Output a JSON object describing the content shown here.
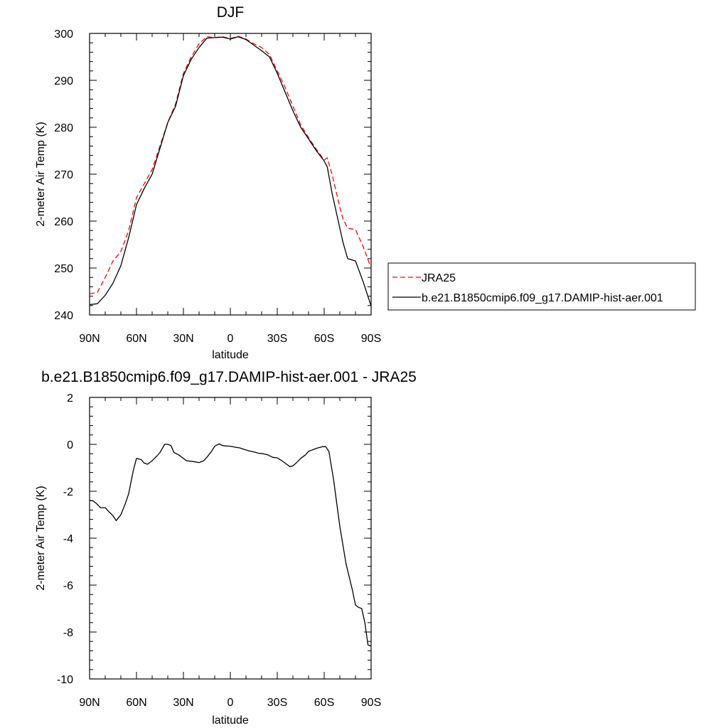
{
  "chart_data": [
    {
      "type": "line",
      "title": "DJF",
      "xlabel": "latitude",
      "ylabel": "2-meter Air Temp (K)",
      "xlim": [
        90,
        -90
      ],
      "ylim": [
        240,
        300
      ],
      "x_tick_values": [
        90,
        60,
        30,
        0,
        -30,
        -60,
        -90
      ],
      "x_tick_labels": [
        "90N",
        "60N",
        "30N",
        "0",
        "30S",
        "60S",
        "90S"
      ],
      "y_ticks": [
        240,
        250,
        260,
        270,
        280,
        290,
        300
      ],
      "legend_position": "right",
      "series": [
        {
          "name": "JRA25",
          "color": "#ff0000",
          "style": "dashed",
          "x": [
            90,
            85,
            80,
            75,
            70,
            65,
            60,
            55,
            50,
            45,
            40,
            35,
            30,
            25,
            20,
            15,
            10,
            5,
            0,
            -5,
            -10,
            -15,
            -20,
            -25,
            -30,
            -35,
            -40,
            -45,
            -50,
            -55,
            -60,
            -62,
            -65,
            -70,
            -72,
            -75,
            -80,
            -85,
            -90
          ],
          "y": [
            244.5,
            244.8,
            248.0,
            251.5,
            253.5,
            258.0,
            265.0,
            268.0,
            271.0,
            276.0,
            281.0,
            285.0,
            291.5,
            295.0,
            297.8,
            299.3,
            299.1,
            299.3,
            298.9,
            299.4,
            298.8,
            297.8,
            297.0,
            295.5,
            292.0,
            288.5,
            284.5,
            280.5,
            277.8,
            275.3,
            273.0,
            273.5,
            270.0,
            263.0,
            260.5,
            258.5,
            258.2,
            254.5,
            250.0
          ]
        },
        {
          "name": "b.e21.B1850cmip6.f09_g17.DAMIP-hist-aer.001",
          "color": "#000000",
          "style": "solid",
          "x": [
            90,
            85,
            80,
            75,
            70,
            65,
            60,
            55,
            50,
            45,
            40,
            35,
            30,
            25,
            20,
            15,
            10,
            5,
            0,
            -5,
            -10,
            -15,
            -20,
            -25,
            -30,
            -35,
            -40,
            -45,
            -50,
            -55,
            -60,
            -62,
            -65,
            -70,
            -72,
            -75,
            -80,
            -85,
            -90
          ],
          "y": [
            242.2,
            242.4,
            244.2,
            246.8,
            250.5,
            256.5,
            263.5,
            267.0,
            270.0,
            275.5,
            281.0,
            284.5,
            291.0,
            294.5,
            297.0,
            299.0,
            299.1,
            299.2,
            298.8,
            299.3,
            298.7,
            297.5,
            296.3,
            295.0,
            291.5,
            287.5,
            283.5,
            280.0,
            277.5,
            275.0,
            272.8,
            271.5,
            266.0,
            258.5,
            255.5,
            252.0,
            251.5,
            247.0,
            241.9
          ]
        }
      ]
    },
    {
      "type": "line",
      "title": "b.e21.B1850cmip6.f09_g17.DAMIP-hist-aer.001 - JRA25",
      "xlabel": "latitude",
      "ylabel": "2-meter Air Temp (K)",
      "xlim": [
        90,
        -90
      ],
      "ylim": [
        -10,
        2
      ],
      "x_tick_values": [
        90,
        60,
        30,
        0,
        -30,
        -60,
        -90
      ],
      "x_tick_labels": [
        "90N",
        "60N",
        "30N",
        "0",
        "30S",
        "60S",
        "90S"
      ],
      "y_ticks": [
        -10,
        -8,
        -6,
        -4,
        -2,
        0,
        2
      ],
      "series": [
        {
          "color": "#000000",
          "style": "solid",
          "x": [
            90,
            88,
            86,
            83,
            80,
            78,
            75,
            73,
            70,
            67,
            65,
            62,
            60,
            57,
            55,
            53,
            50,
            47,
            45,
            42,
            40,
            38,
            36,
            33,
            30,
            28,
            25,
            22,
            20,
            17,
            15,
            12,
            10,
            7,
            5,
            3,
            0,
            -3,
            -6,
            -9,
            -12,
            -15,
            -18,
            -21,
            -24,
            -27,
            -30,
            -33,
            -35,
            -38,
            -40,
            -42,
            -45,
            -48,
            -50,
            -53,
            -56,
            -59,
            -61,
            -63,
            -66,
            -70,
            -74,
            -78,
            -80,
            -82,
            -84,
            -86,
            -88,
            -90
          ],
          "y": [
            -2.4,
            -2.4,
            -2.5,
            -2.7,
            -2.7,
            -2.85,
            -3.05,
            -3.25,
            -3.0,
            -2.5,
            -2.1,
            -1.1,
            -0.6,
            -0.65,
            -0.8,
            -0.85,
            -0.7,
            -0.5,
            -0.35,
            0.0,
            0.0,
            -0.05,
            -0.35,
            -0.45,
            -0.6,
            -0.7,
            -0.72,
            -0.75,
            -0.78,
            -0.7,
            -0.55,
            -0.3,
            -0.08,
            0.02,
            -0.05,
            -0.07,
            -0.08,
            -0.12,
            -0.15,
            -0.22,
            -0.28,
            -0.32,
            -0.38,
            -0.4,
            -0.45,
            -0.55,
            -0.58,
            -0.7,
            -0.8,
            -0.95,
            -0.92,
            -0.8,
            -0.6,
            -0.45,
            -0.3,
            -0.22,
            -0.15,
            -0.1,
            -0.1,
            -0.3,
            -1.5,
            -3.5,
            -5.1,
            -6.2,
            -6.85,
            -6.95,
            -7.0,
            -7.6,
            -8.55,
            -8.6
          ]
        }
      ]
    }
  ]
}
